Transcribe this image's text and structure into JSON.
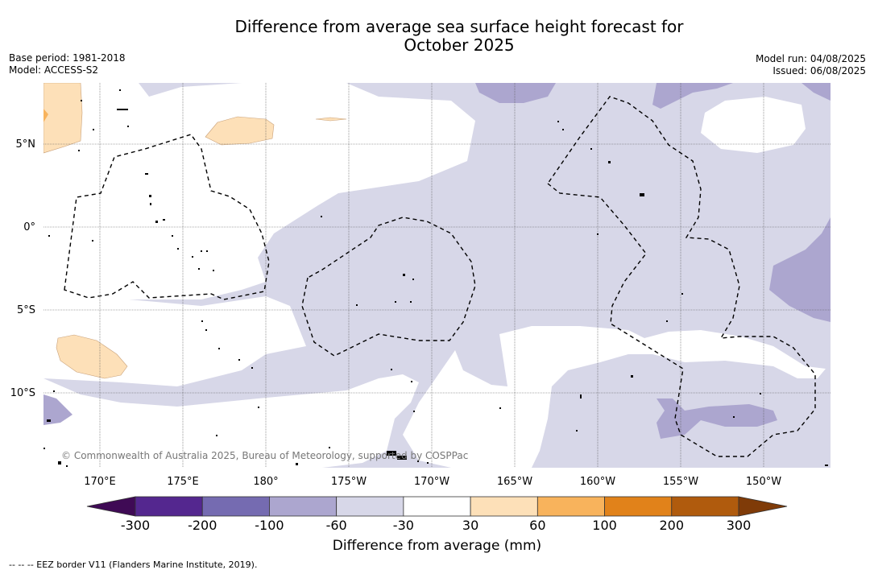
{
  "title": "Difference from average sea surface height forecast for October 2025",
  "title_line1": "Difference from average sea surface height forecast for",
  "title_line2": "October 2025",
  "base_period": "Base period: 1981-2018",
  "model": "Model: ACCESS-S2",
  "model_run": "Model run: 04/08/2025",
  "issued": "Issued: 06/08/2025",
  "lat_labels": [
    "5°N",
    "0°",
    "5°S",
    "10°S"
  ],
  "lon_labels": [
    "170°E",
    "175°E",
    "180°",
    "175°W",
    "170°W",
    "165°W",
    "160°W",
    "155°W",
    "150°W"
  ],
  "copyright": "© Commonwealth of Australia 2025, Bureau of Meteorology, supported by COSPPac",
  "colorbar": {
    "ticks": [
      "-300",
      "-200",
      "-100",
      "-60",
      "-30",
      "30",
      "60",
      "100",
      "200",
      "300"
    ],
    "colors": [
      "#54278f",
      "#756bb1",
      "#aca6cf",
      "#d7d7e8",
      "#ffffff",
      "#fde0b8",
      "#f8b35c",
      "#e1821a",
      "#b05b0d"
    ],
    "under_color": "#3f0a55",
    "over_color": "#7f3b08",
    "title": "Difference from average (mm)"
  },
  "footnote": "--  --  -- EEZ border V11 (Flanders Marine Institute, 2019)."
}
